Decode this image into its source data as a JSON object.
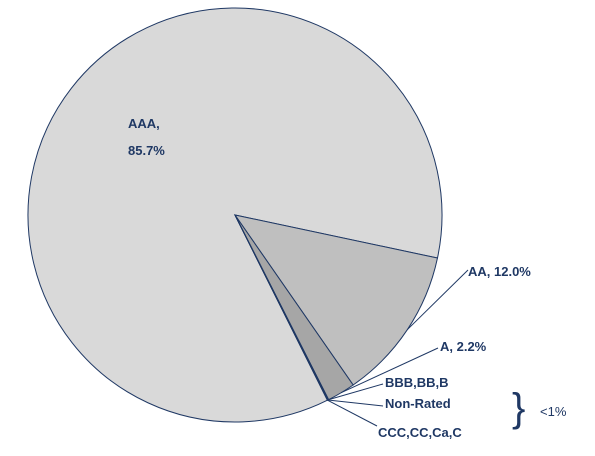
{
  "chart_data": {
    "type": "pie",
    "values": [
      85.7,
      12.0,
      2.2,
      0.05,
      0.03,
      0.02
    ],
    "value_labels": [
      "AAA,\n85.7%",
      "AA, 12.0%",
      "A, 2.2%",
      "BBB,BB,B",
      "Non-Rated",
      "CCC,CC,Ca,C"
    ],
    "colors": [
      "#d9d9d9",
      "#bfbfbf",
      "#a6a6a6",
      "#7f7f7f",
      "#595959",
      "#404040"
    ],
    "annotation": "<1%"
  }
}
